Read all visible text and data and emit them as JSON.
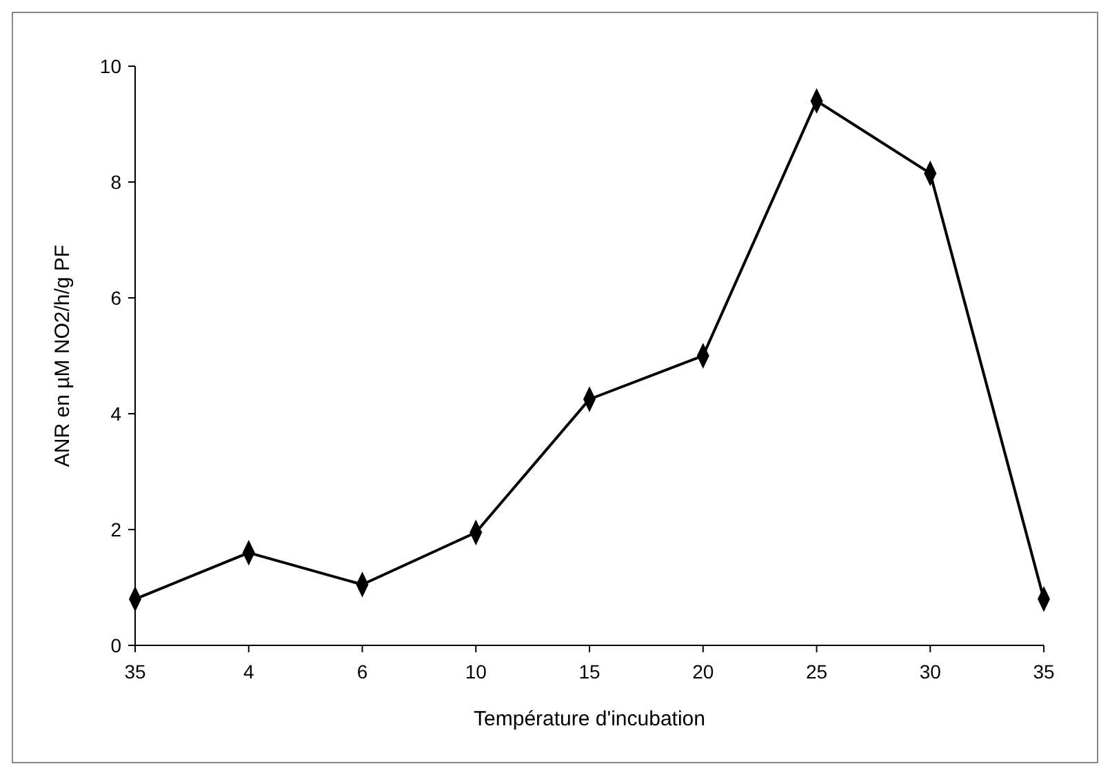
{
  "chart_data": {
    "type": "line",
    "xlabel": "Température d'incubation",
    "ylabel": "ANR en µM NO2/h/g PF",
    "categories": [
      "35",
      "4",
      "6",
      "10",
      "15",
      "20",
      "25",
      "30",
      "35"
    ],
    "series": [
      {
        "color": "#000000",
        "values": [
          0.8,
          1.6,
          1.05,
          1.95,
          4.25,
          5.0,
          9.4,
          8.15,
          0.8
        ]
      }
    ],
    "ylim": [
      0,
      10
    ],
    "yticks": [
      0,
      2,
      4,
      6,
      8,
      10
    ],
    "grid": false,
    "marker": "diamond",
    "line_style": "solid"
  }
}
